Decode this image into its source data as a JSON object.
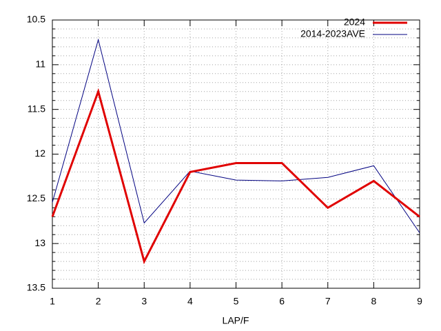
{
  "chart_data": {
    "type": "line",
    "x_label": "LAP/F",
    "x": [
      1,
      2,
      3,
      4,
      5,
      6,
      7,
      8,
      9
    ],
    "series": [
      {
        "name": "2024",
        "color": "#e00000",
        "width": 3,
        "values": [
          12.7,
          11.3,
          13.2,
          12.2,
          12.1,
          12.1,
          12.6,
          12.3,
          12.7
        ]
      },
      {
        "name": "2014-2023AVE",
        "color": "#000080",
        "width": 1,
        "values": [
          12.54,
          10.72,
          12.77,
          12.19,
          12.29,
          12.3,
          12.26,
          12.13,
          12.88
        ]
      }
    ],
    "xlim": [
      1,
      9
    ],
    "xticks": [
      1,
      2,
      3,
      4,
      5,
      6,
      7,
      8,
      9
    ],
    "ylim": [
      13.5,
      10.5
    ],
    "yticks": [
      10.5,
      11,
      11.5,
      12,
      12.5,
      13,
      13.5
    ],
    "y_minor_ticks": [
      10.6,
      10.7,
      10.8,
      10.9,
      11.1,
      11.2,
      11.3,
      11.4,
      11.6,
      11.7,
      11.8,
      11.9,
      12.1,
      12.2,
      12.3,
      12.4,
      12.6,
      12.7,
      12.8,
      12.9,
      13.1,
      13.2,
      13.3,
      13.4
    ],
    "grid": true,
    "legend": "top-right"
  }
}
